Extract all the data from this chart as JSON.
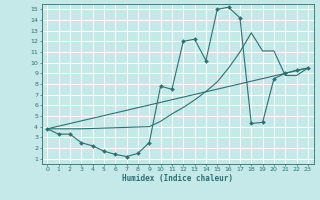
{
  "xlabel": "Humidex (Indice chaleur)",
  "bg_color": "#c5e8e8",
  "grid_color": "#ffffff",
  "line_color": "#2e7070",
  "xlim_min": -0.5,
  "xlim_max": 23.5,
  "ylim_min": 0.5,
  "ylim_max": 15.5,
  "xticks": [
    0,
    1,
    2,
    3,
    4,
    5,
    6,
    7,
    8,
    9,
    10,
    11,
    12,
    13,
    14,
    15,
    16,
    17,
    18,
    19,
    20,
    21,
    22,
    23
  ],
  "yticks": [
    1,
    2,
    3,
    4,
    5,
    6,
    7,
    8,
    9,
    10,
    11,
    12,
    13,
    14,
    15
  ],
  "curve1_x": [
    0,
    1,
    2,
    3,
    4,
    5,
    6,
    7,
    8,
    9,
    10,
    11,
    12,
    13,
    14,
    15,
    16,
    17,
    18,
    19,
    20,
    21,
    22,
    23
  ],
  "curve1_y": [
    3.8,
    3.3,
    3.3,
    2.5,
    2.2,
    1.7,
    1.4,
    1.2,
    1.5,
    2.5,
    7.8,
    7.5,
    12.0,
    12.2,
    10.2,
    15.0,
    15.2,
    14.2,
    4.3,
    4.4,
    8.5,
    9.0,
    9.3,
    9.5
  ],
  "curve2_x": [
    0,
    3,
    9,
    10,
    11,
    12,
    13,
    14,
    15,
    16,
    17,
    18,
    19,
    20,
    21,
    22,
    23
  ],
  "curve2_y": [
    3.8,
    3.8,
    4.0,
    4.5,
    5.2,
    5.8,
    6.5,
    7.3,
    8.2,
    9.5,
    11.0,
    12.8,
    11.1,
    11.1,
    8.8,
    8.8,
    9.5
  ],
  "curve3_x": [
    0,
    23
  ],
  "curve3_y": [
    3.8,
    9.5
  ]
}
